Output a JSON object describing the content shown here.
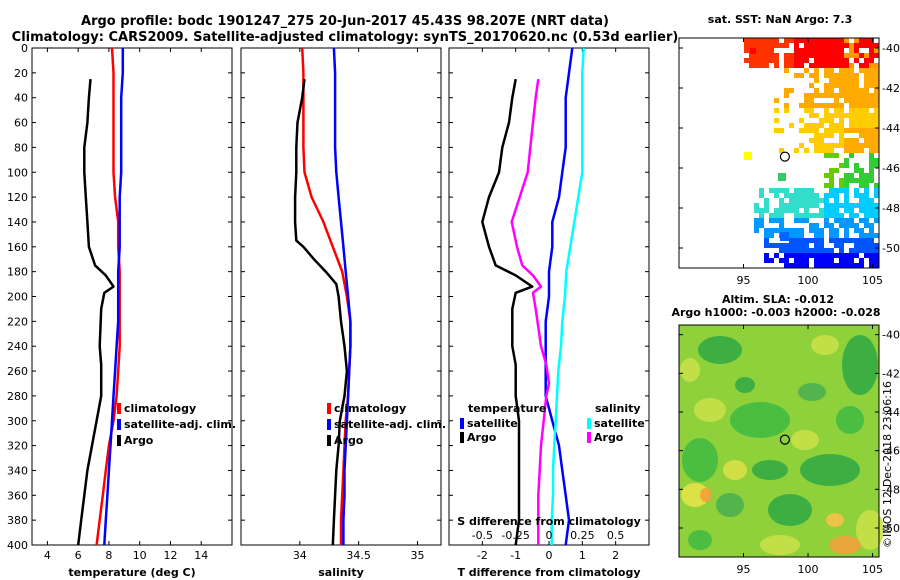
{
  "title": {
    "line1": "Argo profile: bodc 1901247_275 20-Jun-2017 45.43S 98.207E (NRT data)",
    "line2": "Climatology: CARS2009. Satellite-adjusted climatology: synTS_20170620.nc (0.53d earlier)"
  },
  "colors": {
    "red": "#ff0000",
    "blue": "#0000ff",
    "black": "#000000",
    "cyan": "#00ffff",
    "magenta": "#ff00ff"
  },
  "watermark": "©IMOS 12-Dec-2018 23:06:16",
  "chart_data": [
    {
      "type": "line",
      "id": "temperature",
      "xlabel": "temperature (deg C)",
      "xlim": [
        3,
        16
      ],
      "xticks": [
        4,
        6,
        8,
        10,
        12,
        14
      ],
      "ylim": [
        0,
        400
      ],
      "yticks": [
        0,
        20,
        40,
        60,
        80,
        100,
        120,
        140,
        160,
        180,
        200,
        220,
        240,
        260,
        280,
        300,
        320,
        340,
        360,
        380,
        400
      ],
      "legend": [
        "climatology",
        "satellite-adj. clim.",
        "Argo"
      ],
      "series": [
        {
          "name": "climatology",
          "color": "red",
          "depth": [
            0,
            20,
            40,
            60,
            80,
            100,
            120,
            140,
            160,
            180,
            200,
            220,
            240,
            260,
            280,
            300,
            320,
            340,
            360,
            380,
            400
          ],
          "values": [
            8.2,
            8.3,
            8.3,
            8.3,
            8.3,
            8.3,
            8.4,
            8.6,
            8.6,
            8.7,
            8.7,
            8.7,
            8.7,
            8.6,
            8.5,
            8.3,
            8.0,
            7.8,
            7.6,
            7.4,
            7.2
          ]
        },
        {
          "name": "satellite-adj. clim.",
          "color": "blue",
          "depth": [
            0,
            20,
            40,
            60,
            80,
            100,
            120,
            140,
            160,
            180,
            200,
            220,
            240,
            260,
            280,
            300,
            320,
            340,
            360,
            380,
            400
          ],
          "values": [
            8.9,
            8.9,
            8.8,
            8.8,
            8.8,
            8.8,
            8.7,
            8.7,
            8.7,
            8.6,
            8.6,
            8.6,
            8.5,
            8.4,
            8.3,
            8.2,
            8.1,
            8.0,
            7.9,
            7.8,
            7.7
          ]
        },
        {
          "name": "Argo",
          "color": "black",
          "depth": [
            25,
            40,
            60,
            80,
            100,
            120,
            140,
            160,
            175,
            183,
            192,
            197,
            210,
            240,
            255,
            280,
            300,
            320,
            340,
            360,
            380,
            400
          ],
          "values": [
            6.8,
            6.7,
            6.6,
            6.4,
            6.4,
            6.5,
            6.6,
            6.7,
            7.1,
            7.8,
            8.3,
            7.7,
            7.5,
            7.4,
            7.5,
            7.5,
            7.2,
            6.9,
            6.6,
            6.4,
            6.2,
            6.0
          ]
        }
      ]
    },
    {
      "type": "line",
      "id": "salinity",
      "xlabel": "salinity",
      "xlim": [
        33.5,
        35.2
      ],
      "xticks": [
        34,
        34.5,
        35
      ],
      "ylim": [
        0,
        400
      ],
      "legend": [
        "climatology",
        "satellite-adj. clim.",
        "Argo"
      ],
      "series": [
        {
          "name": "climatology",
          "color": "red",
          "depth": [
            0,
            20,
            40,
            60,
            80,
            100,
            120,
            130,
            140,
            150,
            160,
            170,
            180,
            200,
            220,
            240,
            260,
            280,
            300,
            320,
            340,
            360,
            380,
            400
          ],
          "values": [
            34.02,
            34.03,
            34.03,
            34.03,
            34.03,
            34.04,
            34.1,
            34.15,
            34.2,
            34.24,
            34.28,
            34.32,
            34.36,
            34.4,
            34.43,
            34.43,
            34.42,
            34.41,
            34.39,
            34.38,
            34.37,
            34.36,
            34.35,
            34.35
          ]
        },
        {
          "name": "satellite-adj. clim.",
          "color": "blue",
          "depth": [
            0,
            20,
            40,
            60,
            80,
            100,
            120,
            140,
            160,
            180,
            200,
            220,
            240,
            260,
            280,
            300,
            320,
            340,
            360,
            380,
            400
          ],
          "values": [
            34.29,
            34.3,
            34.3,
            34.3,
            34.3,
            34.31,
            34.33,
            34.35,
            34.37,
            34.39,
            34.41,
            34.43,
            34.43,
            34.42,
            34.41,
            34.4,
            34.39,
            34.38,
            34.38,
            34.37,
            34.37
          ]
        },
        {
          "name": "Argo",
          "color": "black",
          "depth": [
            25,
            40,
            60,
            80,
            100,
            120,
            140,
            155,
            160,
            170,
            180,
            190,
            200,
            220,
            240,
            260,
            280,
            300,
            320,
            340,
            360,
            380,
            400
          ],
          "values": [
            34.04,
            34.02,
            33.98,
            33.97,
            33.97,
            33.96,
            33.96,
            33.97,
            34.03,
            34.12,
            34.22,
            34.31,
            34.33,
            34.35,
            34.38,
            34.4,
            34.38,
            34.34,
            34.33,
            34.31,
            34.3,
            34.29,
            34.28
          ]
        }
      ]
    },
    {
      "type": "line",
      "id": "difference",
      "xlabel": "T difference from climatology",
      "xlim": [
        -3,
        3
      ],
      "xticks": [
        -2,
        -1,
        0,
        1,
        2
      ],
      "secondary_axis_label": "S difference from climatology",
      "secondary_ticks": [
        "-0.5",
        "-0.25",
        "0",
        "0.25",
        "0.5"
      ],
      "ylim": [
        0,
        400
      ],
      "legend_temperature": [
        "temperature",
        "satellite",
        "Argo"
      ],
      "legend_salinity": [
        "salinity",
        "satellite",
        "Argo"
      ],
      "series": [
        {
          "name": "temperature satellite",
          "color": "blue",
          "depth": [
            0,
            20,
            40,
            60,
            80,
            100,
            120,
            140,
            160,
            180,
            200,
            220,
            240,
            260,
            280,
            300,
            320,
            340,
            360,
            380,
            400
          ],
          "values": [
            0.7,
            0.6,
            0.5,
            0.5,
            0.5,
            0.4,
            0.3,
            0.1,
            0.1,
            0.0,
            0.0,
            -0.1,
            -0.1,
            -0.1,
            -0.1,
            0.1,
            0.3,
            0.4,
            0.5,
            0.6,
            0.5
          ]
        },
        {
          "name": "temperature Argo",
          "color": "black",
          "depth": [
            25,
            40,
            60,
            80,
            100,
            120,
            140,
            160,
            175,
            183,
            192,
            197,
            210,
            240,
            255,
            280,
            300,
            320,
            340,
            360,
            380,
            400
          ],
          "values": [
            -1.0,
            -1.1,
            -1.2,
            -1.4,
            -1.5,
            -1.8,
            -2.0,
            -1.8,
            -1.6,
            -1.0,
            -0.5,
            -1.0,
            -1.1,
            -1.1,
            -1.0,
            -1.0,
            -0.9,
            -0.9,
            -0.9,
            -0.9,
            -0.9,
            -1.0
          ]
        },
        {
          "name": "salinity satellite",
          "color": "cyan",
          "depth": [
            0,
            20,
            40,
            60,
            80,
            100,
            120,
            140,
            160,
            180,
            200,
            220,
            240,
            260,
            280,
            300,
            320,
            340,
            360,
            380,
            400
          ],
          "values": [
            0.26,
            0.25,
            0.25,
            0.25,
            0.25,
            0.25,
            0.22,
            0.19,
            0.16,
            0.13,
            0.12,
            0.1,
            0.09,
            0.07,
            0.06,
            0.05,
            0.04,
            0.03,
            0.03,
            0.02,
            0.02
          ]
        },
        {
          "name": "salinity Argo",
          "color": "magenta",
          "depth": [
            25,
            40,
            60,
            80,
            100,
            120,
            140,
            160,
            175,
            183,
            192,
            197,
            210,
            240,
            255,
            270,
            280,
            300,
            320,
            340,
            360,
            380,
            400
          ],
          "values": [
            -0.08,
            -0.1,
            -0.12,
            -0.14,
            -0.16,
            -0.22,
            -0.28,
            -0.24,
            -0.2,
            -0.12,
            -0.06,
            -0.12,
            -0.1,
            -0.06,
            -0.02,
            0.0,
            -0.02,
            -0.04,
            -0.06,
            -0.07,
            -0.08,
            -0.08,
            -0.08
          ]
        }
      ]
    },
    {
      "type": "heatmap",
      "id": "sst_map",
      "title": "sat. SST: NaN Argo: 7.3",
      "xlim": [
        90,
        105.5
      ],
      "ylim": [
        -51,
        -39.5
      ],
      "xticks": [
        95,
        100,
        105
      ],
      "yticks": [
        -40,
        -42,
        -44,
        -46,
        -48,
        -50
      ],
      "argo_position": [
        98.207,
        -45.43
      ]
    },
    {
      "type": "heatmap",
      "id": "sla_map",
      "title_line1": "Altim. SLA: -0.012",
      "title_line2": "Argo h1000: -0.003 h2000: -0.028",
      "xlim": [
        90,
        105.5
      ],
      "ylim": [
        -51.5,
        -39.5
      ],
      "xticks": [
        95,
        100,
        105
      ],
      "yticks": [
        -40,
        -42,
        -44,
        -46,
        -48,
        -50
      ],
      "argo_position": [
        98.207,
        -45.43
      ]
    }
  ]
}
